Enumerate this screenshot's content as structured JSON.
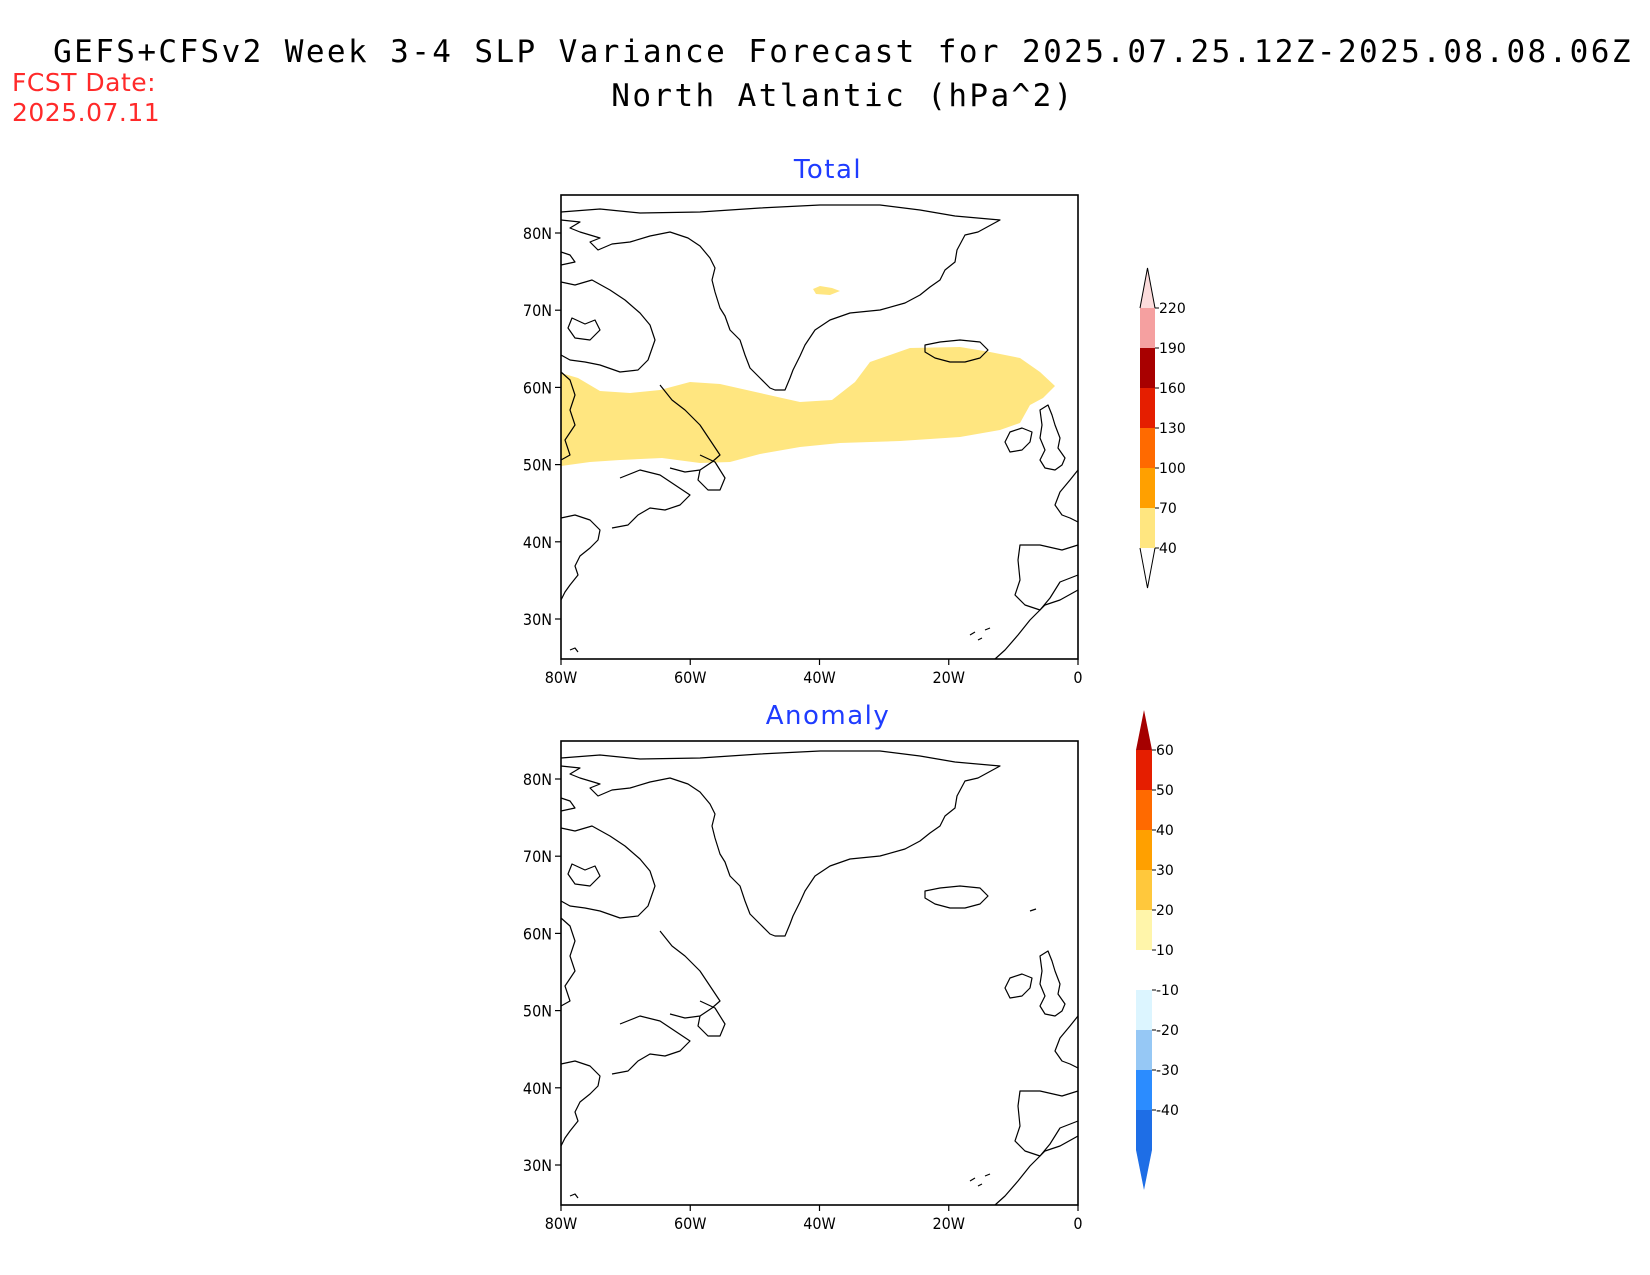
{
  "header": {
    "title_line1": "GEFS+CFSv2 Week 3-4 SLP Variance Forecast for 2025.07.25.12Z-2025.08.08.06Z",
    "title_line2": "North Atlantic (hPa^2)",
    "fcst_label": "FCST Date:",
    "fcst_date": "2025.07.11"
  },
  "map": {
    "lat_ticks": [
      "30N",
      "40N",
      "50N",
      "60N",
      "70N",
      "80N"
    ],
    "lon_ticks": [
      "80W",
      "60W",
      "40W",
      "20W",
      "0"
    ],
    "lat_range": [
      25,
      85
    ],
    "lon_range": [
      -80,
      0
    ]
  },
  "panels": [
    {
      "title": "Total",
      "colorbar": {
        "labels": [
          "40",
          "70",
          "100",
          "130",
          "160",
          "190",
          "220"
        ],
        "colors": [
          "#ffe680",
          "#ffa000",
          "#ff6a00",
          "#e51e00",
          "#a80000",
          "#f5a0a0",
          "#fcdcdc"
        ],
        "cap_color": "#ffffff"
      },
      "shaded_region": {
        "description_value": "40-70",
        "color": "#ffe680"
      }
    },
    {
      "title": "Anomaly",
      "colorbar": {
        "labels": [
          "-40",
          "-30",
          "-20",
          "-10",
          "10",
          "20",
          "30",
          "40",
          "50",
          "60"
        ],
        "colors": [
          "#1e6ee6",
          "#2b8cff",
          "#96c8f5",
          "#dcf5ff",
          "#ffffff",
          "#fff5aa",
          "#ffc83c",
          "#ffa000",
          "#ff6a00",
          "#e51e00"
        ],
        "low_cap_color": "#1e6ee6",
        "high_cap_color": "#a50000"
      }
    }
  ],
  "colors": {
    "title_blue": "#1f3cff",
    "fcst_red": "#ff2a2a"
  }
}
